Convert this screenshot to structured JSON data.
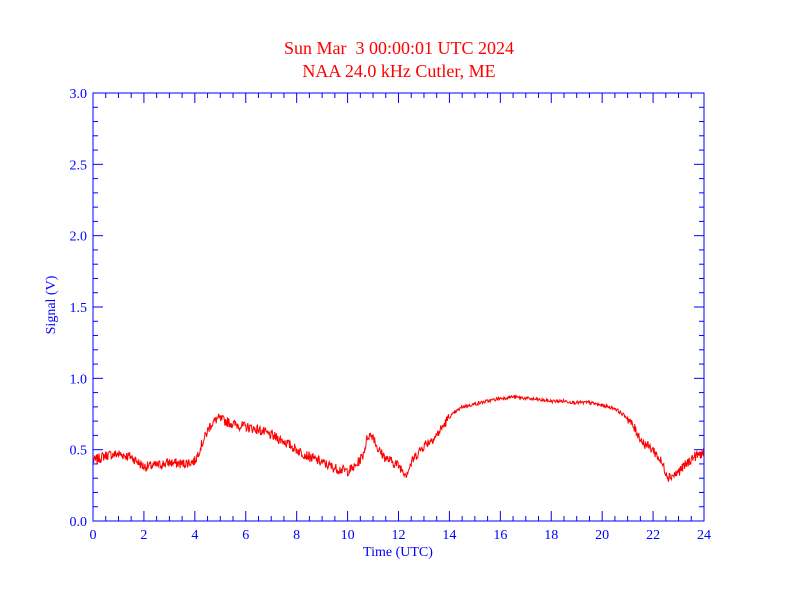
{
  "chart_data": {
    "type": "line",
    "title": "Sun Mar  3 00:00:01 UTC 2024",
    "subtitle": "NAA 24.0 kHz Cutler, ME",
    "xlabel": "Time (UTC)",
    "ylabel": "Signal (V)",
    "xlim": [
      0,
      24
    ],
    "ylim": [
      0,
      3.0
    ],
    "xticks": [
      "0",
      "2",
      "4",
      "6",
      "8",
      "10",
      "12",
      "14",
      "16",
      "18",
      "20",
      "22",
      "24"
    ],
    "yticks": [
      "0.0",
      "0.5",
      "1.0",
      "1.5",
      "2.0",
      "2.5",
      "3.0"
    ],
    "grid": false,
    "colors": {
      "line": "#ff0000",
      "axis": "#0000ff",
      "title": "#ff0000"
    },
    "series": [
      {
        "x": [
          0,
          0.5,
          1,
          1.5,
          2,
          2.5,
          3,
          3.5,
          4,
          4.3,
          4.6,
          4.9,
          5.2,
          5.5,
          6,
          6.5,
          7,
          7.5,
          8,
          8.5,
          9,
          9.5,
          10,
          10.3,
          10.6,
          10.8,
          11,
          11.2,
          11.5,
          12,
          12.3,
          12.6,
          13,
          13.5,
          14,
          14.5,
          15,
          15.5,
          16,
          16.5,
          17,
          17.5,
          18,
          18.5,
          19,
          19.5,
          20,
          20.5,
          21,
          21.3,
          21.6,
          22,
          22.3,
          22.6,
          22.9,
          23.2,
          23.6,
          24
        ],
        "y": [
          0.42,
          0.46,
          0.47,
          0.45,
          0.38,
          0.39,
          0.41,
          0.4,
          0.42,
          0.55,
          0.67,
          0.72,
          0.7,
          0.68,
          0.66,
          0.64,
          0.6,
          0.56,
          0.5,
          0.45,
          0.41,
          0.37,
          0.35,
          0.38,
          0.46,
          0.6,
          0.6,
          0.5,
          0.44,
          0.39,
          0.33,
          0.44,
          0.53,
          0.6,
          0.73,
          0.8,
          0.82,
          0.84,
          0.86,
          0.87,
          0.86,
          0.85,
          0.84,
          0.84,
          0.83,
          0.83,
          0.81,
          0.79,
          0.72,
          0.64,
          0.55,
          0.5,
          0.42,
          0.31,
          0.33,
          0.38,
          0.45,
          0.48
        ]
      }
    ]
  }
}
